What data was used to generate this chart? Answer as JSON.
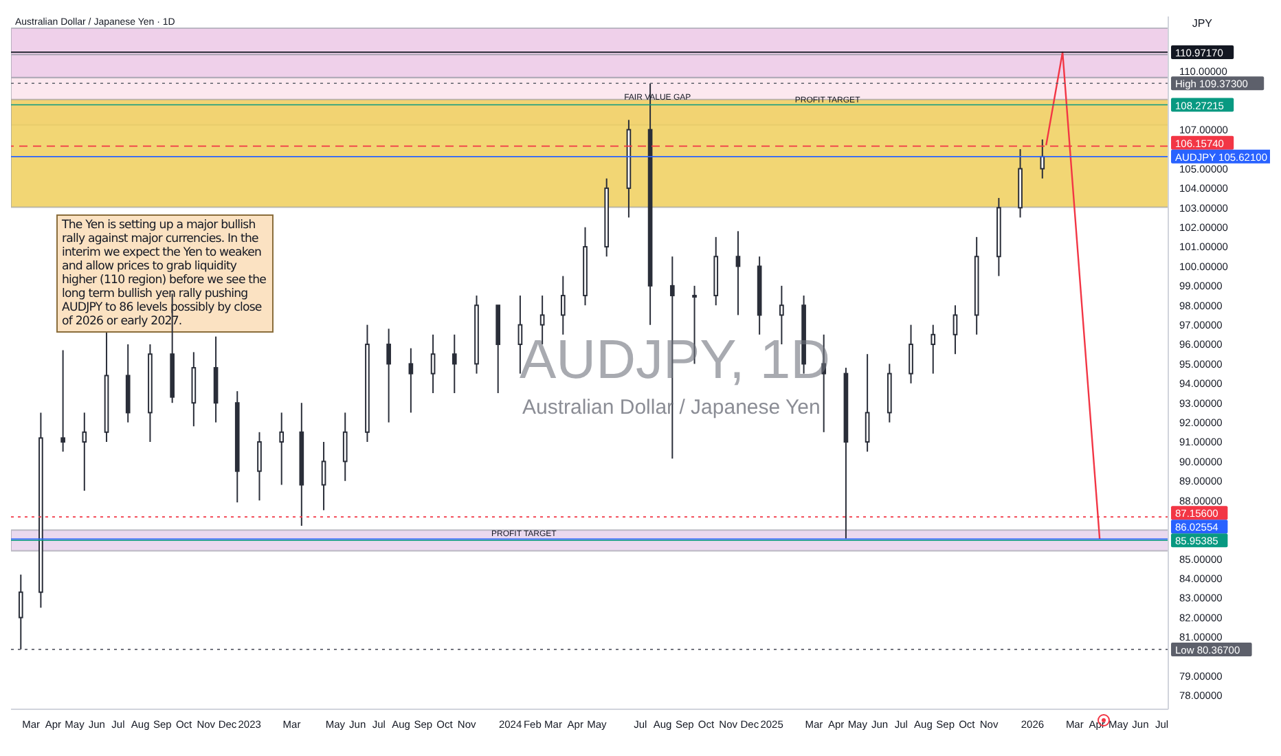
{
  "chart_data": {
    "type": "candlestick",
    "title": "Australian Dollar / Japanese Yen · 1D",
    "ylabel": "JPY",
    "annotations": [
      "The Yen is setting up a major bullish rally against major currencies. In the interim we expect the Yen to weaken and allow prices to grab liquidity higher (110 region) before we see the long term bullish yen rally pushing AUDJPY to 86 levels possibly by close of 2026 or early 2027.",
      "AUDJPY, 1D",
      "Australian Dollar / Japanese Yen",
      {
        "text": "FAIR VALUE GAP",
        "x": "2024-07-25",
        "y": 108.4
      },
      {
        "text": "PROFIT TARGET",
        "x": "2025-03-20",
        "y": 108.27215
      },
      {
        "text": "PROFIT TARGET",
        "x": "2024-01-20",
        "y": 86.02554
      }
    ],
    "x": [
      "2022-02-15",
      "2022-03-15",
      "2022-04-15",
      "2022-05-15",
      "2022-06-15",
      "2022-07-15",
      "2022-08-15",
      "2022-09-15",
      "2022-10-15",
      "2022-11-15",
      "2022-12-15",
      "2023-01-15",
      "2023-02-15",
      "2023-03-15",
      "2023-04-15",
      "2023-05-15",
      "2023-06-15",
      "2023-07-15",
      "2023-08-15",
      "2023-09-15",
      "2023-10-15",
      "2023-11-15",
      "2023-12-15",
      "2024-01-15",
      "2024-02-15",
      "2024-03-15",
      "2024-04-15",
      "2024-05-15",
      "2024-06-15",
      "2024-07-15",
      "2024-08-15",
      "2024-09-15",
      "2024-10-15",
      "2024-11-15",
      "2024-12-15",
      "2025-01-15",
      "2025-02-15",
      "2025-03-15",
      "2025-04-15",
      "2025-05-15",
      "2025-06-15",
      "2025-07-15",
      "2025-08-15",
      "2025-09-15",
      "2025-10-15",
      "2025-11-15",
      "2025-12-15",
      "2026-01-15"
    ],
    "series": [
      {
        "color": "#2a2e39",
        "ohlc": [
          [
            82.0,
            84.2,
            80.37,
            83.3
          ],
          [
            83.3,
            92.5,
            82.5,
            91.2
          ],
          [
            91.2,
            95.7,
            90.5,
            91.0
          ],
          [
            91.0,
            92.5,
            88.5,
            91.5
          ],
          [
            91.5,
            96.6,
            91.0,
            94.4
          ],
          [
            94.4,
            96.0,
            92.0,
            92.5
          ],
          [
            92.5,
            96.0,
            91.0,
            95.5
          ],
          [
            95.5,
            98.6,
            93.0,
            93.3
          ],
          [
            93.0,
            95.6,
            91.8,
            94.8
          ],
          [
            94.8,
            96.4,
            92.0,
            93.0
          ],
          [
            93.0,
            93.6,
            87.9,
            89.5
          ],
          [
            89.5,
            91.5,
            88.0,
            91.0
          ],
          [
            91.0,
            92.5,
            88.8,
            91.5
          ],
          [
            91.5,
            93.0,
            86.7,
            88.8
          ],
          [
            88.8,
            91.0,
            87.5,
            90.0
          ],
          [
            90.0,
            92.5,
            89.0,
            91.5
          ],
          [
            91.5,
            97.0,
            91.0,
            96.0
          ],
          [
            96.0,
            96.8,
            92.0,
            95.0
          ],
          [
            95.0,
            95.8,
            92.5,
            94.5
          ],
          [
            94.5,
            96.5,
            93.5,
            95.5
          ],
          [
            95.5,
            96.5,
            93.5,
            95.0
          ],
          [
            95.0,
            98.5,
            94.5,
            98.0
          ],
          [
            98.0,
            98.0,
            93.5,
            96.0
          ],
          [
            96.0,
            98.5,
            94.5,
            97.0
          ],
          [
            97.0,
            98.5,
            96.0,
            97.5
          ],
          [
            97.5,
            99.5,
            96.5,
            98.5
          ],
          [
            98.5,
            102.0,
            98.0,
            101.0
          ],
          [
            101.0,
            104.5,
            100.5,
            104.0
          ],
          [
            104.0,
            107.5,
            102.5,
            107.0
          ],
          [
            107.0,
            109.37,
            97.0,
            99.0
          ],
          [
            99.0,
            100.5,
            90.15,
            98.5
          ],
          [
            98.5,
            99.0,
            95.0,
            98.5
          ],
          [
            98.5,
            101.5,
            98.0,
            100.5
          ],
          [
            100.5,
            101.8,
            97.5,
            100.0
          ],
          [
            100.0,
            100.5,
            96.5,
            97.5
          ],
          [
            97.5,
            99.0,
            96.0,
            98.0
          ],
          [
            98.0,
            98.5,
            94.5,
            95.0
          ],
          [
            95.0,
            96.5,
            91.5,
            94.5
          ],
          [
            94.5,
            94.8,
            86.05,
            91.0
          ],
          [
            91.0,
            95.5,
            90.5,
            92.5
          ],
          [
            92.5,
            95.0,
            92.0,
            94.5
          ],
          [
            94.5,
            97.0,
            94.0,
            96.0
          ],
          [
            96.0,
            97.0,
            94.5,
            96.5
          ],
          [
            96.5,
            98.0,
            95.5,
            97.5
          ],
          [
            97.5,
            101.5,
            96.5,
            100.5
          ],
          [
            100.5,
            103.5,
            99.5,
            103.0
          ],
          [
            103.0,
            106.0,
            102.5,
            105.0
          ],
          [
            105.0,
            106.5,
            104.5,
            105.62
          ]
        ]
      },
      {
        "type": "line",
        "color": "#f23645",
        "x": [
          "2026-01-20",
          "2026-02-12",
          "2026-04-05"
        ],
        "values": [
          106.2,
          110.97,
          86.0
        ]
      }
    ],
    "xlim": [
      "2022-02-01",
      "2026-07-10"
    ],
    "xticks": [
      {
        "value": "2022-03-01",
        "label": "Mar"
      },
      {
        "value": "2022-04-01",
        "label": "Apr"
      },
      {
        "value": "2022-05-01",
        "label": "May"
      },
      {
        "value": "2022-06-01",
        "label": "Jun"
      },
      {
        "value": "2022-07-01",
        "label": "Jul"
      },
      {
        "value": "2022-08-01",
        "label": "Aug"
      },
      {
        "value": "2022-09-01",
        "label": "Sep"
      },
      {
        "value": "2022-10-01",
        "label": "Oct"
      },
      {
        "value": "2022-11-01",
        "label": "Nov"
      },
      {
        "value": "2022-12-01",
        "label": "Dec"
      },
      {
        "value": "2023-01-01",
        "label": "2023"
      },
      {
        "value": "2023-03-01",
        "label": "Mar"
      },
      {
        "value": "2023-05-01",
        "label": "May"
      },
      {
        "value": "2023-06-01",
        "label": "Jun"
      },
      {
        "value": "2023-07-01",
        "label": "Jul"
      },
      {
        "value": "2023-08-01",
        "label": "Aug"
      },
      {
        "value": "2023-09-01",
        "label": "Sep"
      },
      {
        "value": "2023-10-01",
        "label": "Oct"
      },
      {
        "value": "2023-11-01",
        "label": "Nov"
      },
      {
        "value": "2024-01-01",
        "label": "2024"
      },
      {
        "value": "2024-02-01",
        "label": "Feb"
      },
      {
        "value": "2024-03-01",
        "label": "Mar"
      },
      {
        "value": "2024-04-01",
        "label": "Apr"
      },
      {
        "value": "2024-05-01",
        "label": "May"
      },
      {
        "value": "2024-07-01",
        "label": "Jul"
      },
      {
        "value": "2024-08-01",
        "label": "Aug"
      },
      {
        "value": "2024-09-01",
        "label": "Sep"
      },
      {
        "value": "2024-10-01",
        "label": "Oct"
      },
      {
        "value": "2024-11-01",
        "label": "Nov"
      },
      {
        "value": "2024-12-01",
        "label": "Dec"
      },
      {
        "value": "2025-01-01",
        "label": "2025"
      },
      {
        "value": "2025-03-01",
        "label": "Mar"
      },
      {
        "value": "2025-04-01",
        "label": "Apr"
      },
      {
        "value": "2025-05-01",
        "label": "May"
      },
      {
        "value": "2025-06-01",
        "label": "Jun"
      },
      {
        "value": "2025-07-01",
        "label": "Jul"
      },
      {
        "value": "2025-08-01",
        "label": "Aug"
      },
      {
        "value": "2025-09-01",
        "label": "Sep"
      },
      {
        "value": "2025-10-01",
        "label": "Oct"
      },
      {
        "value": "2025-11-01",
        "label": "Nov"
      },
      {
        "value": "2026-01-01",
        "label": "2026"
      },
      {
        "value": "2026-03-01",
        "label": "Mar"
      },
      {
        "value": "2026-04-01",
        "label": "Apr"
      },
      {
        "value": "2026-05-01",
        "label": "May"
      },
      {
        "value": "2026-06-01",
        "label": "Jun"
      },
      {
        "value": "2026-07-01",
        "label": "Jul"
      }
    ],
    "ylim": [
      77.3,
      112.8
    ],
    "yticks": [
      {
        "value": 78,
        "label": "78.00000"
      },
      {
        "value": 79,
        "label": "79.00000"
      },
      {
        "value": 81,
        "label": "81.00000"
      },
      {
        "value": 82,
        "label": "82.00000"
      },
      {
        "value": 83,
        "label": "83.00000"
      },
      {
        "value": 84,
        "label": "84.00000"
      },
      {
        "value": 85,
        "label": "85.00000"
      },
      {
        "value": 88,
        "label": "88.00000"
      },
      {
        "value": 89,
        "label": "89.00000"
      },
      {
        "value": 90,
        "label": "90.00000"
      },
      {
        "value": 91,
        "label": "91.00000"
      },
      {
        "value": 92,
        "label": "92.00000"
      },
      {
        "value": 93,
        "label": "93.00000"
      },
      {
        "value": 94,
        "label": "94.00000"
      },
      {
        "value": 95,
        "label": "95.00000"
      },
      {
        "value": 96,
        "label": "96.00000"
      },
      {
        "value": 97,
        "label": "97.00000"
      },
      {
        "value": 98,
        "label": "98.00000"
      },
      {
        "value": 99,
        "label": "99.00000"
      },
      {
        "value": 100,
        "label": "100.00000"
      },
      {
        "value": 101,
        "label": "101.00000"
      },
      {
        "value": 102,
        "label": "102.00000"
      },
      {
        "value": 103,
        "label": "103.00000"
      },
      {
        "value": 104,
        "label": "104.00000"
      },
      {
        "value": 105,
        "label": "105.00000"
      },
      {
        "value": 107,
        "label": "107.00000"
      },
      {
        "value": 110,
        "label": "110.00000"
      }
    ],
    "bands": [
      {
        "axis": "y",
        "from": 107.24,
        "to": 109.67,
        "color": "#fce4ec"
      },
      {
        "axis": "y",
        "from": 109.67,
        "to": 110.85,
        "color": "#ecc8e6"
      },
      {
        "axis": "y",
        "from": 110.85,
        "to": 112.2,
        "color": "#ecc8e6"
      },
      {
        "axis": "y",
        "from": 103.03,
        "to": 108.55,
        "color": "#f0cf5c"
      },
      {
        "axis": "y",
        "from": 85.42,
        "to": 86.48,
        "color": "#e6d2ec"
      }
    ],
    "ref_lines": [
      {
        "axis": "y",
        "value": 110.9717,
        "label": "110.97170",
        "color": "#131722",
        "line_style": "solid"
      },
      {
        "axis": "y",
        "value": 109.373,
        "label": "High 109.37300",
        "color": "#5d606b",
        "line_style": "dotted"
      },
      {
        "axis": "y",
        "value": 108.27215,
        "label": "108.27215",
        "color": "#089981",
        "line_style": "solid"
      },
      {
        "axis": "y",
        "value": 106.1574,
        "label": "106.15740",
        "color": "#f23645",
        "line_style": "dashed"
      },
      {
        "axis": "y",
        "value": 105.621,
        "label": "AUDJPY 105.62100",
        "color": "#2962ff",
        "line_style": "solid"
      },
      {
        "axis": "y",
        "value": 87.156,
        "label": "87.15600",
        "color": "#f23645",
        "line_style": "dotted"
      },
      {
        "axis": "y",
        "value": 86.02554,
        "label": "86.02554",
        "color": "#2962ff",
        "line_style": "solid"
      },
      {
        "axis": "y",
        "value": 85.95385,
        "label": "85.95385",
        "color": "#089981",
        "line_style": "solid"
      },
      {
        "axis": "y",
        "value": 80.367,
        "label": "Low 80.36700",
        "color": "#5d606b",
        "line_style": "dotted"
      }
    ],
    "legend": false
  }
}
